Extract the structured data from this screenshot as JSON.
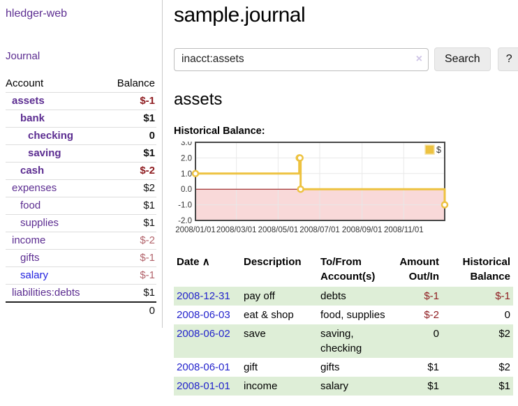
{
  "app": {
    "title": "hledger-web"
  },
  "sidebar": {
    "journal_link": "Journal",
    "accounts": {
      "account_header": "Account",
      "balance_header": "Balance",
      "rows": [
        {
          "name": "assets",
          "balance": "$-1"
        },
        {
          "name": "bank",
          "balance": "$1"
        },
        {
          "name": "checking",
          "balance": "0"
        },
        {
          "name": "saving",
          "balance": "$1"
        },
        {
          "name": "cash",
          "balance": "$-2"
        },
        {
          "name": "expenses",
          "balance": "$2"
        },
        {
          "name": "food",
          "balance": "$1"
        },
        {
          "name": "supplies",
          "balance": "$1"
        },
        {
          "name": "income",
          "balance": "$-2"
        },
        {
          "name": "gifts",
          "balance": "$-1"
        },
        {
          "name": "salary",
          "balance": "$-1"
        },
        {
          "name": "liabilities:debts",
          "balance": "$1"
        }
      ],
      "total": "0"
    }
  },
  "header": {
    "title": "sample.journal"
  },
  "search": {
    "value": "inacct:assets",
    "clear_icon": "×",
    "search_button": "Search",
    "help_button": "?"
  },
  "account_page": {
    "heading": "assets"
  },
  "chart_data": {
    "type": "line",
    "step": true,
    "title": "Historical Balance:",
    "series": [
      {
        "name": "$",
        "color": "#edc240",
        "points": [
          {
            "date": "2008-01-01",
            "value": 1
          },
          {
            "date": "2008-06-01",
            "value": 2
          },
          {
            "date": "2008-06-02",
            "value": 2
          },
          {
            "date": "2008-06-03",
            "value": 0
          },
          {
            "date": "2008-12-31",
            "value": -1
          }
        ]
      }
    ],
    "x_min": "2008-01-01",
    "x_max": "2008-12-31",
    "x_ticks": [
      {
        "date": "2008-01-01",
        "label": "2008/01/01"
      },
      {
        "date": "2008-03-01",
        "label": "2008/03/01"
      },
      {
        "date": "2008-05-01",
        "label": "2008/05/01"
      },
      {
        "date": "2008-07-01",
        "label": "2008/07/01"
      },
      {
        "date": "2008-09-01",
        "label": "2008/09/01"
      },
      {
        "date": "2008-11-01",
        "label": "2008/11/01"
      }
    ],
    "y_ticks": [
      "3.0",
      "2.0",
      "1.0",
      "0.0",
      "-1.0",
      "-2.0"
    ],
    "ylim": [
      -2,
      3
    ],
    "grid": true,
    "legend_position": "top-right",
    "legend_label": "$",
    "negative_region_color": "#f9d9d9",
    "zero_line_color": "#8f0505",
    "line_color": "#edc240",
    "marker": "circle-open"
  },
  "register": {
    "headers": {
      "date": "Date",
      "sort_icon": "∧",
      "description": "Description",
      "accounts": "To/From Account(s)",
      "amount": "Amount Out/In",
      "balance": "Historical Balance"
    },
    "rows": [
      {
        "date": "2008-12-31",
        "description": "pay off",
        "accounts": "debts",
        "amount": "$-1",
        "balance": "$-1"
      },
      {
        "date": "2008-06-03",
        "description": "eat & shop",
        "accounts": "food, supplies",
        "amount": "$-2",
        "balance": "0"
      },
      {
        "date": "2008-06-02",
        "description": "save",
        "accounts": "saving, checking",
        "amount": "0",
        "balance": "$2"
      },
      {
        "date": "2008-06-01",
        "description": "gift",
        "accounts": "gifts",
        "amount": "$1",
        "balance": "$2"
      },
      {
        "date": "2008-01-01",
        "description": "income",
        "accounts": "salary",
        "amount": "$1",
        "balance": "$1"
      }
    ]
  }
}
